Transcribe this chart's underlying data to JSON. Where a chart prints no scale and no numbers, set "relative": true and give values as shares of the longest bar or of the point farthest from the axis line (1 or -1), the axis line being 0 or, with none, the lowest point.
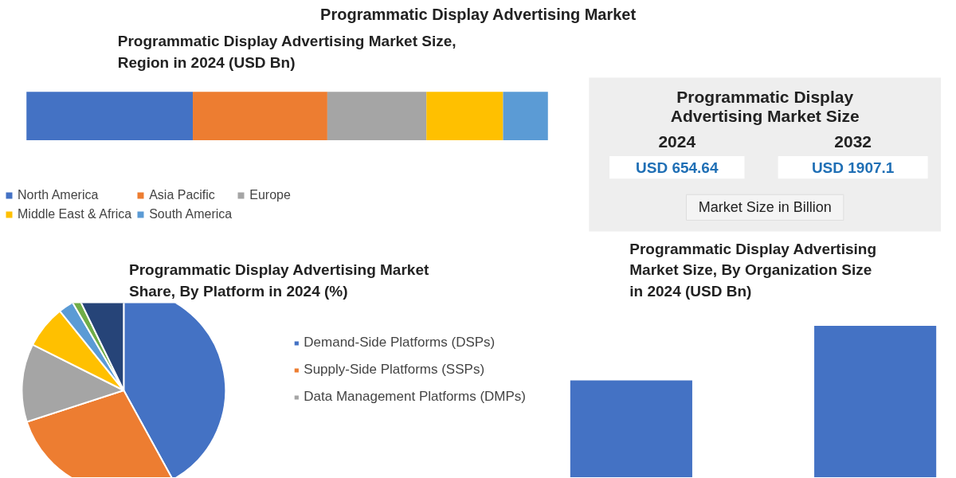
{
  "chart_data": [
    {
      "type": "other",
      "title": "Programmatic Display Advertising Market"
    },
    {
      "type": "bar",
      "title": "Programmatic Display Advertising Market Size, Region in 2024 (USD Bn)",
      "orientation": "horizontal",
      "stacked": true,
      "relative": true,
      "categories": [
        null
      ],
      "legend": "bottom",
      "series": [
        {
          "name": "North America",
          "color": "#4472c4",
          "values": [
            0.319
          ]
        },
        {
          "name": "Asia Pacific",
          "color": "#ed7d31",
          "values": [
            0.258
          ]
        },
        {
          "name": "Europe",
          "color": "#a5a5a5",
          "values": [
            0.19
          ]
        },
        {
          "name": "Middle East & Africa",
          "color": "#ffc000",
          "values": [
            0.147
          ]
        },
        {
          "name": "South America",
          "color": "#5b9bd5",
          "values": [
            0.086
          ]
        }
      ]
    },
    {
      "type": "other",
      "title": "Programmatic Display Advertising Market Size",
      "categories": [
        "2024",
        "2032"
      ],
      "values": [
        654.64,
        1907.1
      ],
      "value_labels": [
        "USD 654.64",
        "USD 1907.1"
      ],
      "annotations": [
        "Market Size in Billion"
      ]
    },
    {
      "type": "pie",
      "title": "Programmatic Display Advertising Market Share, By Platform in 2024 (%)",
      "legend": "right",
      "categories": [
        "Demand-Side Platforms (DSPs)",
        "Supply-Side Platforms (SSPs)",
        "Data Management Platforms (DMPs)",
        null,
        null,
        null,
        null
      ],
      "values": [
        42,
        28,
        12.4,
        6.8,
        2.4,
        1.2,
        7.2
      ],
      "colors": [
        "#4472c4",
        "#ed7d31",
        "#a5a5a5",
        "#ffc000",
        "#5b9bd5",
        "#70ad47",
        "#264478"
      ]
    },
    {
      "type": "bar",
      "title": "Programmatic Display Advertising Market Size, By Organization Size in 2024 (USD Bn)",
      "relative": true,
      "categories": [
        null,
        null
      ],
      "values": [
        0.64,
        1
      ],
      "color": "#4472c4"
    }
  ]
}
